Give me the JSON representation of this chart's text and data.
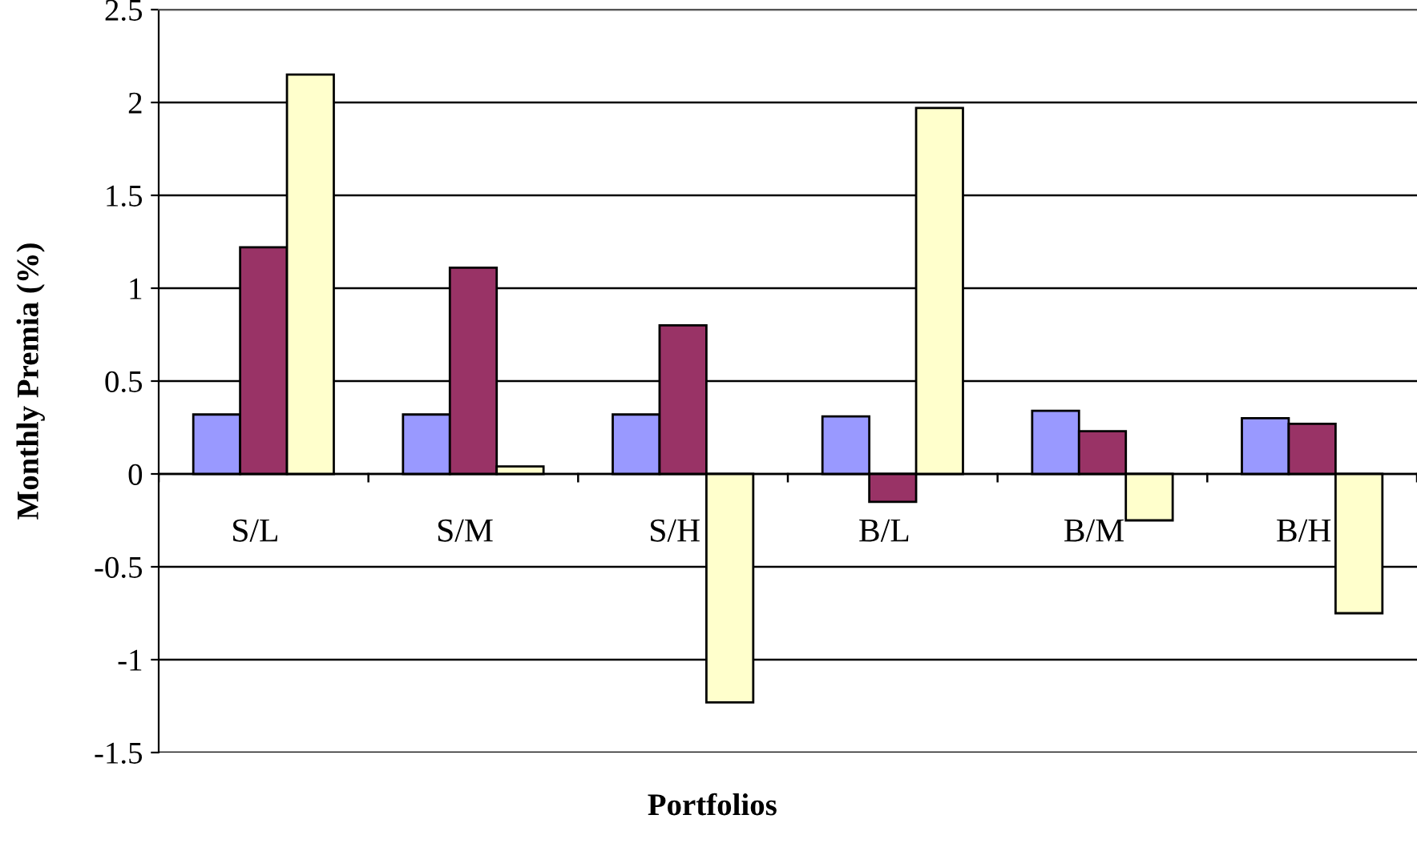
{
  "chart_data": {
    "type": "bar",
    "xlabel": "Portfolios",
    "ylabel": "Monthly Premia (%)",
    "categories": [
      "S/L",
      "S/M",
      "S/H",
      "B/L",
      "B/M",
      "B/H"
    ],
    "series": [
      {
        "color": "#9999ff",
        "values": [
          0.32,
          0.32,
          0.32,
          0.31,
          0.34,
          0.3
        ]
      },
      {
        "color": "#993366",
        "values": [
          1.22,
          1.11,
          0.8,
          -0.15,
          0.23,
          0.27
        ]
      },
      {
        "color": "#ffffcc",
        "values": [
          2.15,
          0.04,
          -1.23,
          1.97,
          -0.25,
          -0.75
        ]
      }
    ],
    "ylim": [
      -1.5,
      2.5
    ],
    "yticks": [
      -1.5,
      -1,
      -0.5,
      0,
      0.5,
      1,
      1.5,
      2,
      2.5
    ],
    "grid": "y",
    "legend": false
  }
}
